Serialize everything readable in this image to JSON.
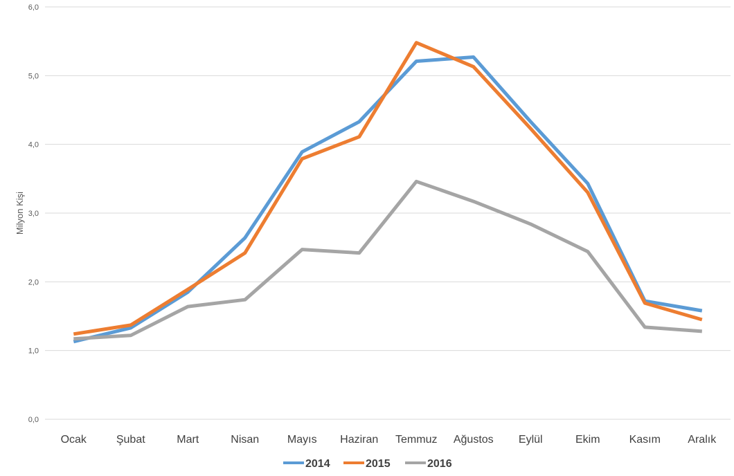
{
  "chart_data": {
    "type": "line",
    "ylabel": "Milyon Kişi",
    "xlabel": "",
    "ylim": [
      0,
      6
    ],
    "y_ticks": [
      "0,0",
      "1,0",
      "2,0",
      "3,0",
      "4,0",
      "5,0",
      "6,0"
    ],
    "categories": [
      "Ocak",
      "Şubat",
      "Mart",
      "Nisan",
      "Mayıs",
      "Haziran",
      "Temmuz",
      "Ağustos",
      "Eylül",
      "Ekim",
      "Kasım",
      "Aralık"
    ],
    "grid": true,
    "legend_position": "bottom",
    "series": [
      {
        "name": "2014",
        "color": "#5b9bd5",
        "values": [
          1.13,
          1.33,
          1.85,
          2.64,
          3.89,
          4.33,
          5.21,
          5.27,
          4.33,
          3.43,
          1.72,
          1.58
        ]
      },
      {
        "name": "2015",
        "color": "#ed7d31",
        "values": [
          1.24,
          1.37,
          1.89,
          2.42,
          3.79,
          4.11,
          5.48,
          5.13,
          4.23,
          3.3,
          1.69,
          1.45
        ]
      },
      {
        "name": "2016",
        "color": "#a5a5a5",
        "values": [
          1.17,
          1.22,
          1.64,
          1.74,
          2.47,
          2.42,
          3.46,
          3.17,
          2.84,
          2.44,
          1.34,
          1.28
        ]
      }
    ]
  }
}
